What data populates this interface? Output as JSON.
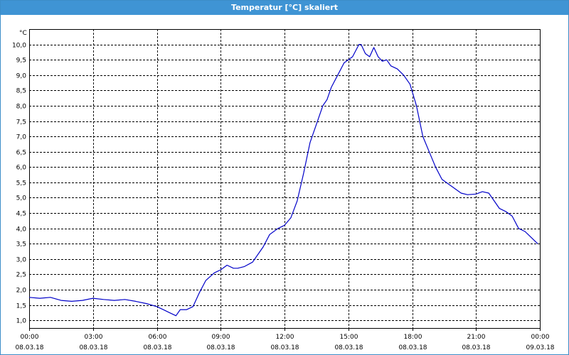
{
  "window": {
    "title": "Temperatur [°C] skaliert"
  },
  "colors": {
    "titlebar": "#3f94d4",
    "line": "#0000c8",
    "grid": "#000000"
  },
  "chart_data": {
    "type": "line",
    "title": "Temperatur [°C] skaliert",
    "ylabel": "°C",
    "ylim": [
      0.75,
      10.5
    ],
    "y_ticks": [
      1.0,
      1.5,
      2.0,
      2.5,
      3.0,
      3.5,
      4.0,
      4.5,
      5.0,
      5.5,
      6.0,
      6.5,
      7.0,
      7.5,
      8.0,
      8.5,
      9.0,
      9.5,
      10.0
    ],
    "y_tick_labels": [
      "1,0",
      "1,5",
      "2,0",
      "2,5",
      "3,0",
      "3,5",
      "4,0",
      "4,5",
      "5,0",
      "5,5",
      "6,0",
      "6,5",
      "7,0",
      "7,5",
      "8,0",
      "8,5",
      "9,0",
      "9,5",
      "10,0"
    ],
    "xlim": [
      0,
      24
    ],
    "x_ticks": [
      0,
      3,
      6,
      9,
      12,
      15,
      18,
      21,
      24
    ],
    "x_tick_labels": [
      {
        "time": "00:00",
        "date": "08.03.18"
      },
      {
        "time": "03:00",
        "date": "08.03.18"
      },
      {
        "time": "06:00",
        "date": "08.03.18"
      },
      {
        "time": "09:00",
        "date": "08.03.18"
      },
      {
        "time": "12:00",
        "date": "08.03.18"
      },
      {
        "time": "15:00",
        "date": "08.03.18"
      },
      {
        "time": "18:00",
        "date": "08.03.18"
      },
      {
        "time": "21:00",
        "date": "08.03.18"
      },
      {
        "time": "00:00",
        "date": "09.03.18"
      }
    ],
    "grid": true,
    "series": [
      {
        "x": [
          0,
          0.5,
          1.0,
          1.5,
          2.0,
          2.5,
          3.0,
          3.5,
          4.0,
          4.5,
          5.0,
          5.5,
          6.0,
          6.3,
          6.6,
          6.9,
          7.1,
          7.4,
          7.7,
          8.0,
          8.3,
          8.7,
          9.0,
          9.3,
          9.6,
          9.8,
          10.1,
          10.5,
          11.0,
          11.3,
          11.7,
          12.0,
          12.3,
          12.6,
          12.9,
          13.2,
          13.5,
          13.8,
          14.0,
          14.2,
          14.5,
          14.8,
          15.0,
          15.2,
          15.5,
          15.6,
          15.8,
          16.0,
          16.2,
          16.4,
          16.6,
          16.8,
          17.0,
          17.3,
          17.6,
          17.9,
          18.2,
          18.5,
          18.8,
          19.1,
          19.4,
          19.7,
          20.0,
          20.3,
          20.6,
          21.0,
          21.3,
          21.6,
          21.8,
          22.1,
          22.4,
          22.7,
          23.0,
          23.3,
          23.6,
          23.9
        ],
        "y": [
          1.75,
          1.72,
          1.75,
          1.65,
          1.62,
          1.65,
          1.72,
          1.68,
          1.65,
          1.68,
          1.62,
          1.55,
          1.45,
          1.35,
          1.25,
          1.15,
          1.35,
          1.35,
          1.45,
          1.9,
          2.3,
          2.55,
          2.65,
          2.8,
          2.7,
          2.7,
          2.75,
          2.9,
          3.4,
          3.8,
          4.0,
          4.1,
          4.35,
          4.9,
          5.8,
          6.8,
          7.4,
          8.0,
          8.2,
          8.6,
          9.0,
          9.4,
          9.5,
          9.6,
          10.0,
          10.0,
          9.7,
          9.6,
          9.9,
          9.6,
          9.45,
          9.5,
          9.3,
          9.2,
          9.0,
          8.7,
          8.0,
          7.0,
          6.5,
          6.0,
          5.6,
          5.45,
          5.3,
          5.15,
          5.1,
          5.12,
          5.2,
          5.15,
          4.95,
          4.65,
          4.55,
          4.4,
          4.0,
          3.9,
          3.7,
          3.5
        ]
      }
    ]
  }
}
